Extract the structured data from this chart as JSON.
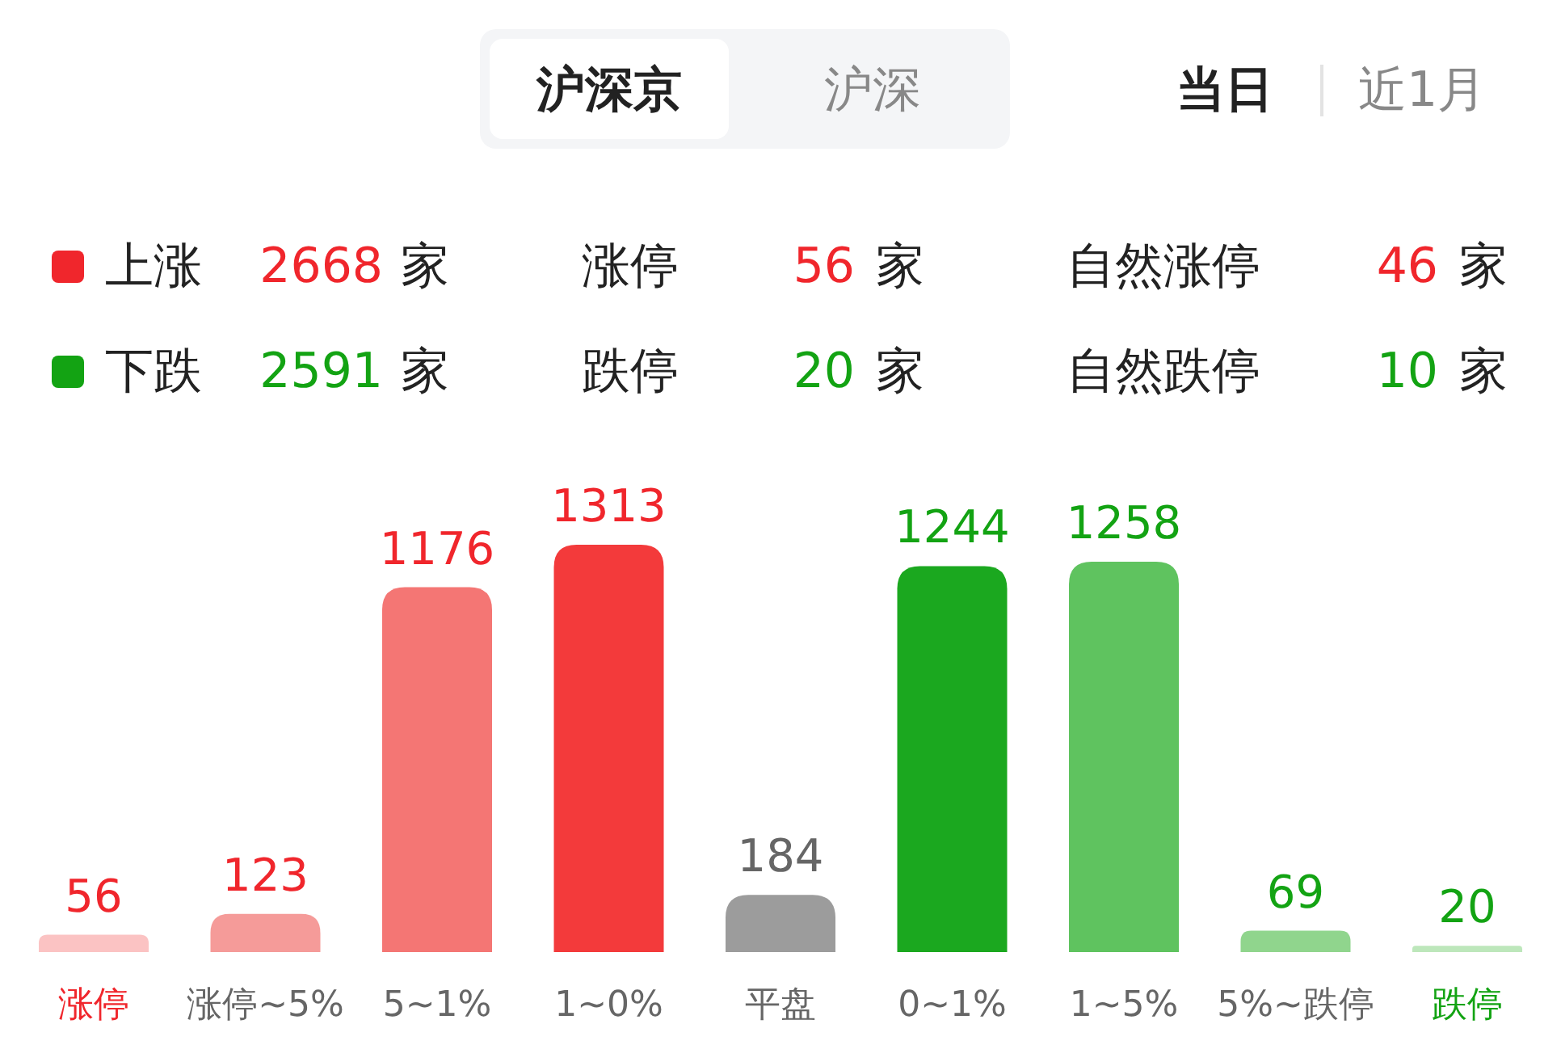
{
  "chart_data": {
    "type": "bar",
    "categories": [
      "涨停",
      "涨停~5%",
      "5~1%",
      "1~0%",
      "平盘",
      "0~1%",
      "1~5%",
      "5%~跌停",
      "跌停"
    ],
    "values": [
      56,
      123,
      1176,
      1313,
      184,
      1244,
      1258,
      69,
      20
    ],
    "colors": [
      "#fbc3c3",
      "#f59b99",
      "#f47674",
      "#f33a3b",
      "#9c9c9c",
      "#1ba81f",
      "#5fc35f",
      "#90d58d",
      "#bde7bb"
    ],
    "data_labels": true,
    "annotations": [
      "沪深京",
      "沪深",
      "当日",
      "近1月",
      "上涨",
      "2668",
      "家",
      "涨停",
      "56",
      "家",
      "自然涨停",
      "46",
      "家",
      "下跌",
      "2591",
      "家",
      "跌停",
      "20",
      "家",
      "自然跌停",
      "10",
      "家"
    ]
  }
}
